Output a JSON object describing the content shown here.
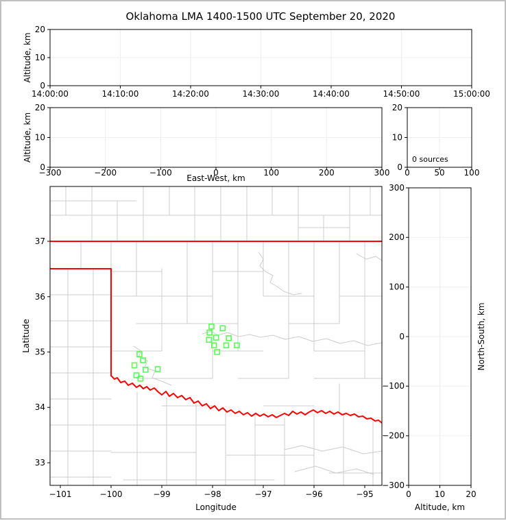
{
  "title": "Oklahoma LMA 1400-1500 UTC September 20, 2020",
  "colors": {
    "state_border": "#ff0000",
    "county_line": "#cccccc",
    "station_marker": "#55ff55",
    "grid_line": "#ededed",
    "frame": "#bfbfbf"
  },
  "chart_data": [
    {
      "id": "time-altitude-panel",
      "type": "scatter",
      "xlabel": "",
      "ylabel": "Altitude, km",
      "xtick_labels": [
        "14:00:00",
        "14:10:00",
        "14:20:00",
        "14:30:00",
        "14:40:00",
        "14:50:00",
        "15:00:00"
      ],
      "ytick_labels": [
        "0",
        "10",
        "20"
      ],
      "xlim": [
        "14:00:00",
        "15:00:00"
      ],
      "ylim": [
        0,
        20
      ],
      "grid": true,
      "points": []
    },
    {
      "id": "east-west-altitude-panel",
      "type": "scatter",
      "xlabel": "East-West, km",
      "ylabel": "Altitude, km",
      "xtick_labels": [
        "−300",
        "−200",
        "−100",
        "0",
        "100",
        "200",
        "300"
      ],
      "ytick_labels": [
        "0",
        "10",
        "20"
      ],
      "xlim": [
        -300,
        300
      ],
      "ylim": [
        0,
        20
      ],
      "grid": true,
      "points": []
    },
    {
      "id": "altitude-histogram-panel",
      "type": "line",
      "annotation": "0 sources",
      "xlabel": "",
      "ylabel": "",
      "xtick_labels": [
        "0",
        "50",
        "100"
      ],
      "ytick_labels": [
        "0",
        "10",
        "20"
      ],
      "xlim": [
        0,
        100
      ],
      "ylim": [
        0,
        20
      ],
      "grid": true,
      "points": []
    },
    {
      "id": "plan-view-map-panel",
      "type": "scatter",
      "xlabel": "Longitude",
      "ylabel": "Latitude",
      "xtick_labels": [
        "−101",
        "−100",
        "−99",
        "−98",
        "−97",
        "−96",
        "−95"
      ],
      "ytick_labels": [
        "37",
        "36",
        "35",
        "34",
        "33"
      ],
      "xlim": [
        -101.2,
        -94.66
      ],
      "ylim": [
        32.57,
        37.99
      ],
      "grid": false,
      "station_symbol": "open-square",
      "stations": [
        {
          "lon": -98.02,
          "lat": 35.46
        },
        {
          "lon": -97.8,
          "lat": 35.43
        },
        {
          "lon": -98.06,
          "lat": 35.35
        },
        {
          "lon": -97.93,
          "lat": 35.26
        },
        {
          "lon": -98.07,
          "lat": 35.22
        },
        {
          "lon": -97.68,
          "lat": 35.25
        },
        {
          "lon": -97.97,
          "lat": 35.12
        },
        {
          "lon": -97.73,
          "lat": 35.12
        },
        {
          "lon": -97.52,
          "lat": 35.12
        },
        {
          "lon": -97.91,
          "lat": 35.0
        },
        {
          "lon": -99.44,
          "lat": 34.96
        },
        {
          "lon": -99.37,
          "lat": 34.85
        },
        {
          "lon": -99.54,
          "lat": 34.76
        },
        {
          "lon": -99.32,
          "lat": 34.68
        },
        {
          "lon": -99.08,
          "lat": 34.69
        },
        {
          "lon": -99.5,
          "lat": 34.58
        },
        {
          "lon": -99.42,
          "lat": 34.52
        }
      ],
      "sources": []
    },
    {
      "id": "north-south-altitude-panel",
      "type": "scatter",
      "xlabel": "Altitude, km",
      "ylabel_right": "North-South, km",
      "xtick_labels": [
        "0",
        "10",
        "20"
      ],
      "ytick_labels": [
        "300",
        "200",
        "100",
        "0",
        "−100",
        "−200",
        "−300"
      ],
      "xlim": [
        0,
        20
      ],
      "ylim": [
        -300,
        300
      ],
      "grid": true,
      "points": []
    }
  ]
}
